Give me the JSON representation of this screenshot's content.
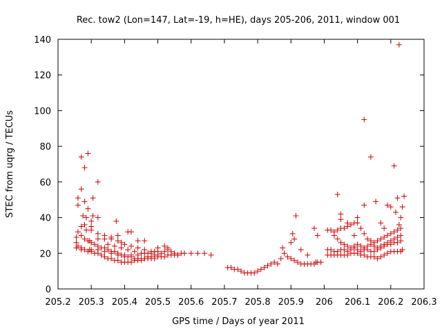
{
  "chart_data": {
    "type": "scatter",
    "title": "Rec. tow2 (Lon=147, Lat=-19, h=HE), days 205-206, 2011, window 001",
    "xlabel": "GPS time / Days of year 2011",
    "ylabel": "STEC from uqrg / TECUs",
    "xlim": [
      205.2,
      206.3
    ],
    "ylim": [
      0,
      140
    ],
    "x_ticks": [
      "205.2",
      "205.3",
      "205.4",
      "205.5",
      "205.6",
      "205.7",
      "205.8",
      "205.9",
      "206",
      "206.1",
      "206.2",
      "206.3"
    ],
    "y_ticks": [
      "0",
      "20",
      "40",
      "60",
      "80",
      "100",
      "120",
      "140"
    ],
    "grid": false,
    "marker": "plus",
    "color": "#cc0000",
    "series": [
      {
        "points": [
          [
            205.255,
            29
          ],
          [
            205.255,
            26
          ],
          [
            205.255,
            23
          ],
          [
            205.26,
            32
          ],
          [
            205.26,
            47
          ],
          [
            205.26,
            51
          ],
          [
            205.27,
            22
          ],
          [
            205.27,
            35
          ],
          [
            205.27,
            56
          ],
          [
            205.27,
            74
          ],
          [
            205.275,
            41
          ],
          [
            205.28,
            68
          ],
          [
            205.28,
            49
          ],
          [
            205.285,
            33
          ],
          [
            205.285,
            40
          ],
          [
            205.29,
            76
          ],
          [
            205.29,
            45
          ],
          [
            205.295,
            27
          ],
          [
            205.295,
            22
          ],
          [
            205.3,
            38
          ],
          [
            205.3,
            35
          ],
          [
            205.305,
            51
          ],
          [
            205.305,
            41
          ],
          [
            205.32,
            60
          ],
          [
            205.32,
            40
          ],
          [
            205.32,
            28
          ],
          [
            205.34,
            28
          ],
          [
            205.36,
            29
          ],
          [
            205.375,
            38
          ],
          [
            205.38,
            30
          ],
          [
            205.39,
            26
          ],
          [
            205.41,
            32
          ],
          [
            205.42,
            32
          ],
          [
            205.44,
            27
          ],
          [
            205.46,
            27
          ],
          [
            205.26,
            24
          ],
          [
            205.27,
            23
          ],
          [
            205.28,
            22
          ],
          [
            205.29,
            21
          ],
          [
            205.3,
            21
          ],
          [
            205.31,
            20
          ],
          [
            205.32,
            20
          ],
          [
            205.33,
            19
          ],
          [
            205.34,
            18
          ],
          [
            205.35,
            17
          ],
          [
            205.36,
            17
          ],
          [
            205.37,
            16
          ],
          [
            205.38,
            16
          ],
          [
            205.39,
            15
          ],
          [
            205.4,
            15
          ],
          [
            205.41,
            15
          ],
          [
            205.42,
            15
          ],
          [
            205.43,
            16
          ],
          [
            205.44,
            16
          ],
          [
            205.45,
            16
          ],
          [
            205.46,
            17
          ],
          [
            205.47,
            17
          ],
          [
            205.48,
            17
          ],
          [
            205.49,
            17
          ],
          [
            205.5,
            18
          ],
          [
            205.51,
            18
          ],
          [
            205.52,
            18
          ],
          [
            205.53,
            19
          ],
          [
            205.54,
            19
          ],
          [
            205.55,
            19
          ],
          [
            205.56,
            19
          ],
          [
            205.57,
            20
          ],
          [
            205.58,
            20
          ],
          [
            205.6,
            20
          ],
          [
            205.62,
            20
          ],
          [
            205.64,
            20
          ],
          [
            205.66,
            19
          ],
          [
            205.27,
            30
          ],
          [
            205.28,
            28
          ],
          [
            205.29,
            27
          ],
          [
            205.3,
            26
          ],
          [
            205.31,
            25
          ],
          [
            205.32,
            24
          ],
          [
            205.33,
            23
          ],
          [
            205.34,
            23
          ],
          [
            205.35,
            22
          ],
          [
            205.36,
            21
          ],
          [
            205.37,
            21
          ],
          [
            205.38,
            20
          ],
          [
            205.39,
            19
          ],
          [
            205.4,
            19
          ],
          [
            205.41,
            18
          ],
          [
            205.42,
            18
          ],
          [
            205.43,
            17
          ],
          [
            205.44,
            17
          ],
          [
            205.45,
            17
          ],
          [
            205.46,
            17
          ],
          [
            205.47,
            18
          ],
          [
            205.48,
            18
          ],
          [
            205.49,
            19
          ],
          [
            205.5,
            19
          ],
          [
            205.51,
            20
          ],
          [
            205.52,
            21
          ],
          [
            205.53,
            22
          ],
          [
            205.54,
            21
          ],
          [
            205.55,
            20
          ],
          [
            205.56,
            19
          ],
          [
            205.28,
            36
          ],
          [
            205.3,
            33
          ],
          [
            205.32,
            31
          ],
          [
            205.34,
            30
          ],
          [
            205.36,
            28
          ],
          [
            205.38,
            27
          ],
          [
            205.4,
            25
          ],
          [
            205.42,
            24
          ],
          [
            205.44,
            23
          ],
          [
            205.46,
            22
          ],
          [
            205.48,
            21
          ],
          [
            205.5,
            23
          ],
          [
            205.52,
            24
          ],
          [
            205.53,
            23
          ],
          [
            205.35,
            25
          ],
          [
            205.37,
            24
          ],
          [
            205.39,
            23
          ],
          [
            205.41,
            22
          ],
          [
            205.43,
            21
          ],
          [
            205.45,
            20
          ],
          [
            205.47,
            20
          ],
          [
            205.49,
            21
          ],
          [
            205.3,
            22
          ],
          [
            205.32,
            22
          ],
          [
            205.34,
            21
          ],
          [
            205.36,
            20
          ],
          [
            205.38,
            19
          ],
          [
            205.4,
            18
          ],
          [
            205.42,
            19
          ],
          [
            205.44,
            19
          ],
          [
            205.46,
            20
          ],
          [
            205.48,
            20
          ],
          [
            205.5,
            21
          ],
          [
            205.71,
            12
          ],
          [
            205.72,
            12
          ],
          [
            205.73,
            11
          ],
          [
            205.74,
            11
          ],
          [
            205.75,
            10
          ],
          [
            205.76,
            9
          ],
          [
            205.77,
            9
          ],
          [
            205.78,
            9
          ],
          [
            205.79,
            9
          ],
          [
            205.8,
            10
          ],
          [
            205.81,
            11
          ],
          [
            205.82,
            12
          ],
          [
            205.83,
            13
          ],
          [
            205.84,
            14
          ],
          [
            205.85,
            15
          ],
          [
            205.86,
            14
          ],
          [
            205.87,
            17
          ],
          [
            205.875,
            23
          ],
          [
            205.88,
            20
          ],
          [
            205.89,
            18
          ],
          [
            205.9,
            17
          ],
          [
            205.91,
            16
          ],
          [
            205.92,
            15
          ],
          [
            205.93,
            14
          ],
          [
            205.94,
            14
          ],
          [
            205.95,
            14
          ],
          [
            205.96,
            14
          ],
          [
            205.97,
            14
          ],
          [
            205.98,
            15
          ],
          [
            205.99,
            15
          ],
          [
            205.9,
            26
          ],
          [
            205.905,
            31
          ],
          [
            205.91,
            28
          ],
          [
            205.915,
            41
          ],
          [
            205.93,
            22
          ],
          [
            205.95,
            19
          ],
          [
            205.97,
            34
          ],
          [
            205.975,
            15
          ],
          [
            205.98,
            30
          ],
          [
            206.01,
            19
          ],
          [
            206.02,
            19
          ],
          [
            206.03,
            19
          ],
          [
            206.04,
            19
          ],
          [
            206.05,
            19
          ],
          [
            206.06,
            19
          ],
          [
            206.07,
            19
          ],
          [
            206.08,
            20
          ],
          [
            206.09,
            20
          ],
          [
            206.1,
            20
          ],
          [
            206.11,
            19
          ],
          [
            206.12,
            19
          ],
          [
            206.13,
            18
          ],
          [
            206.14,
            18
          ],
          [
            206.15,
            18
          ],
          [
            206.16,
            17
          ],
          [
            206.17,
            18
          ],
          [
            206.18,
            19
          ],
          [
            206.19,
            20
          ],
          [
            206.2,
            21
          ],
          [
            206.21,
            21
          ],
          [
            206.22,
            21
          ],
          [
            206.23,
            21
          ],
          [
            206.01,
            22
          ],
          [
            206.02,
            22
          ],
          [
            206.03,
            21
          ],
          [
            206.04,
            21
          ],
          [
            206.05,
            22
          ],
          [
            206.06,
            22
          ],
          [
            206.07,
            21
          ],
          [
            206.08,
            22
          ],
          [
            206.09,
            23
          ],
          [
            206.1,
            22
          ],
          [
            206.11,
            21
          ],
          [
            206.12,
            22
          ],
          [
            206.13,
            22
          ],
          [
            206.14,
            21
          ],
          [
            206.15,
            21
          ],
          [
            206.16,
            22
          ],
          [
            206.17,
            23
          ],
          [
            206.18,
            24
          ],
          [
            206.19,
            25
          ],
          [
            206.2,
            25
          ],
          [
            206.21,
            26
          ],
          [
            206.22,
            26
          ],
          [
            206.23,
            27
          ],
          [
            206.01,
            33
          ],
          [
            206.02,
            33
          ],
          [
            206.03,
            32
          ],
          [
            206.04,
            33
          ],
          [
            206.05,
            34
          ],
          [
            206.06,
            34
          ],
          [
            206.07,
            35
          ],
          [
            206.08,
            36
          ],
          [
            206.09,
            37
          ],
          [
            206.1,
            37
          ],
          [
            206.11,
            34
          ],
          [
            206.12,
            31
          ],
          [
            206.13,
            28
          ],
          [
            206.14,
            27
          ],
          [
            206.15,
            26
          ],
          [
            206.16,
            27
          ],
          [
            206.17,
            28
          ],
          [
            206.18,
            29
          ],
          [
            206.19,
            30
          ],
          [
            206.2,
            31
          ],
          [
            206.21,
            32
          ],
          [
            206.22,
            33
          ],
          [
            206.23,
            34
          ],
          [
            206.03,
            30
          ],
          [
            206.04,
            28
          ],
          [
            206.05,
            26
          ],
          [
            206.06,
            25
          ],
          [
            206.07,
            24
          ],
          [
            206.08,
            23
          ],
          [
            206.09,
            24
          ],
          [
            206.1,
            25
          ],
          [
            206.11,
            24
          ],
          [
            206.12,
            23
          ],
          [
            206.13,
            24
          ],
          [
            206.14,
            25
          ],
          [
            206.15,
            24
          ],
          [
            206.16,
            23
          ],
          [
            206.17,
            24
          ],
          [
            206.18,
            25
          ],
          [
            206.19,
            26
          ],
          [
            206.2,
            27
          ],
          [
            206.21,
            28
          ],
          [
            206.22,
            29
          ],
          [
            206.23,
            30
          ],
          [
            206.04,
            53
          ],
          [
            206.05,
            42
          ],
          [
            206.05,
            39
          ],
          [
            206.07,
            37
          ],
          [
            206.09,
            30
          ],
          [
            206.1,
            40
          ],
          [
            206.12,
            95
          ],
          [
            206.12,
            47
          ],
          [
            206.14,
            74
          ],
          [
            206.155,
            49
          ],
          [
            206.17,
            37
          ],
          [
            206.18,
            34
          ],
          [
            206.19,
            47
          ],
          [
            206.2,
            46
          ],
          [
            206.21,
            69
          ],
          [
            206.22,
            51
          ],
          [
            206.225,
            137
          ],
          [
            206.23,
            40
          ],
          [
            206.235,
            46
          ],
          [
            206.24,
            52
          ],
          [
            206.215,
            43
          ],
          [
            206.225,
            36
          ],
          [
            206.235,
            22
          ]
        ]
      }
    ]
  }
}
